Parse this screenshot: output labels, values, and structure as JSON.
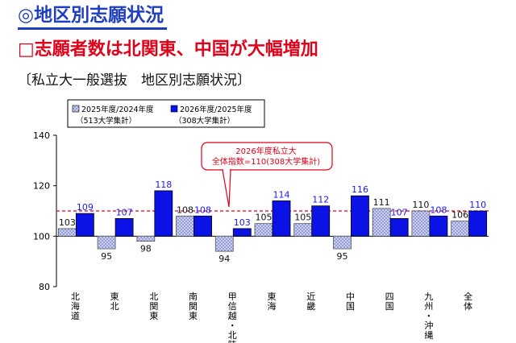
{
  "header": {
    "title": "◎地区別志願状況",
    "headline": "□志願者数は北関東、中国が大幅増加",
    "caption": "〔私立大一般選抜　地区別志願状況〕"
  },
  "colors": {
    "series1_fill": "#c9cfee",
    "series2_fill": "#0a12e6",
    "baseline": "#e0001a",
    "label2_color": "#1a1aff"
  },
  "chart_data": {
    "type": "bar",
    "categories": [
      "北海道",
      "東北",
      "北関東",
      "南関東",
      "甲信越・北陸",
      "東海",
      "近畿",
      "中国",
      "四国",
      "九州・沖縄",
      "全体"
    ],
    "series": [
      {
        "name": "2025年度/2024年度",
        "note": "（513大学集計）",
        "values": [
          103,
          95,
          98,
          108,
          94,
          105,
          105,
          95,
          111,
          110,
          106
        ]
      },
      {
        "name": "2026年度/2025年度",
        "note": "（308大学集計）",
        "values": [
          109,
          107,
          118,
          108,
          103,
          114,
          112,
          116,
          107,
          108,
          110
        ]
      }
    ],
    "base": 100,
    "ylim": [
      80,
      140
    ],
    "yticks": [
      80,
      100,
      120,
      140
    ],
    "reference_line": {
      "value": 110,
      "label_line1": "2026年度私立大",
      "label_line2": "全体指数=110(308大学集計)"
    },
    "legend_position": "top-left",
    "grid": false
  }
}
